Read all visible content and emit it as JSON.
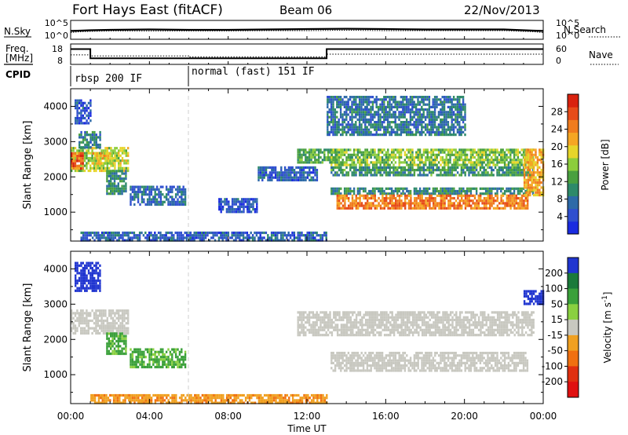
{
  "header": {
    "station": "Fort Hays East (fitACF)",
    "beam": "Beam 06",
    "date": "22/Nov/2013"
  },
  "noise_panel": {
    "left_label": "N.Sky",
    "right_label": "N.Search",
    "left_ticks": [
      "10^5",
      "10^0"
    ],
    "right_ticks": [
      "10^5",
      "10^0"
    ]
  },
  "freq_panel": {
    "left_label_line1": "Freq.",
    "left_label_line2": "[MHz]",
    "right_label": "Nave",
    "left_ticks": [
      "18",
      "8"
    ],
    "right_ticks": [
      "60",
      "0"
    ]
  },
  "cpid_panel": {
    "label": "CPID",
    "segments": [
      {
        "label": "rbsp 200 IF",
        "start_hour": 0,
        "end_hour": 6
      },
      {
        "label": "normal (fast) 151 IF",
        "start_hour": 6,
        "end_hour": 24
      }
    ]
  },
  "chart_data": [
    {
      "type": "line",
      "title": "",
      "series": [
        {
          "name": "N.Sky",
          "x": [
            0,
            0.5,
            1,
            2,
            4,
            6,
            8,
            10,
            12,
            14,
            16,
            18,
            20,
            22,
            23.5,
            24
          ],
          "y": [
            2.2,
            2.3,
            2.4,
            2.5,
            2.6,
            2.5,
            2.5,
            2.6,
            2.7,
            2.8,
            2.7,
            2.6,
            2.6,
            2.6,
            2.3,
            2.2
          ]
        },
        {
          "name": "N.Search",
          "x": [
            0,
            0.5,
            1,
            2,
            4,
            6,
            8,
            10,
            12,
            14,
            16,
            18,
            20,
            22,
            23.5,
            24
          ],
          "y": [
            1.8,
            2.0,
            2.1,
            2.2,
            2.2,
            2.2,
            2.2,
            2.3,
            2.3,
            2.4,
            2.3,
            2.3,
            2.3,
            2.3,
            2.0,
            1.8
          ]
        }
      ],
      "ylabel": "N.Sky",
      "y2label": "N.Search",
      "xlim": [
        0,
        24
      ]
    },
    {
      "type": "line",
      "title": "",
      "series": [
        {
          "name": "Freq.",
          "x": [
            0,
            1,
            1,
            13,
            13,
            24
          ],
          "y": [
            15.5,
            15.5,
            11,
            11,
            15.5,
            15.5
          ]
        },
        {
          "name": "Nave",
          "x": [
            0,
            1,
            1,
            6,
            6,
            13,
            13,
            24
          ],
          "y": [
            28,
            28,
            25,
            25,
            22,
            22,
            30,
            30
          ]
        }
      ],
      "ylabel": "Freq. [MHz]",
      "y2label": "Nave",
      "xlim": [
        0,
        24
      ]
    },
    {
      "type": "heatmap",
      "title": "",
      "xlabel": "",
      "ylabel": "Slant Range [km]",
      "colorbar_label": "Power [dB]",
      "colorbar_ticks": [
        4,
        8,
        12,
        16,
        20,
        24,
        28
      ],
      "colorbar_range": [
        0,
        32
      ],
      "colorbar_colors": [
        "#1a2be0",
        "#2f4fcf",
        "#2d6aa8",
        "#2e8a6a",
        "#4aa040",
        "#8ccd3c",
        "#e6d52a",
        "#f5a623",
        "#f07c1e",
        "#e74c1a",
        "#d9220f"
      ],
      "x_ticks": [
        "00:00",
        "04:00",
        "08:00",
        "12:00",
        "16:00",
        "20:00",
        "00:00"
      ],
      "y_ticks": [
        1000,
        2000,
        3000,
        4000
      ],
      "xlim": [
        0,
        24
      ],
      "ylim": [
        180,
        4500
      ],
      "echo_regions": [
        {
          "t0": 0.0,
          "t1": 2.9,
          "r0": 2200,
          "r1": 2850,
          "v": 17
        },
        {
          "t0": 0.0,
          "t1": 0.6,
          "r0": 2250,
          "r1": 2700,
          "v": 26
        },
        {
          "t0": 1.1,
          "t1": 2.1,
          "r0": 2350,
          "r1": 2700,
          "v": 20
        },
        {
          "t0": 0.4,
          "t1": 1.5,
          "r0": 2850,
          "r1": 3300,
          "v": 9
        },
        {
          "t0": 0.2,
          "t1": 1.0,
          "r0": 3500,
          "r1": 4200,
          "v": 5
        },
        {
          "t0": 1.8,
          "t1": 2.8,
          "r0": 1500,
          "r1": 2200,
          "v": 10
        },
        {
          "t0": 3.0,
          "t1": 5.8,
          "r0": 1200,
          "r1": 1750,
          "v": 7
        },
        {
          "t0": 7.5,
          "t1": 9.5,
          "r0": 1000,
          "r1": 1400,
          "v": 5
        },
        {
          "t0": 9.5,
          "t1": 12.5,
          "r0": 1900,
          "r1": 2300,
          "v": 6
        },
        {
          "t0": 11.5,
          "t1": 13.5,
          "r0": 2400,
          "r1": 2800,
          "v": 13
        },
        {
          "t0": 13.2,
          "t1": 23.5,
          "r0": 2350,
          "r1": 2800,
          "v": 15
        },
        {
          "t0": 13.2,
          "t1": 23.5,
          "r0": 2050,
          "r1": 2300,
          "v": 11
        },
        {
          "t0": 13.2,
          "t1": 23.5,
          "r0": 1500,
          "r1": 1700,
          "v": 10
        },
        {
          "t0": 13.5,
          "t1": 23.2,
          "r0": 1080,
          "r1": 1500,
          "v": 25
        },
        {
          "t0": 13.0,
          "t1": 20.0,
          "r0": 3200,
          "r1": 4300,
          "v": 8
        },
        {
          "t0": 23.0,
          "t1": 24.0,
          "r0": 1500,
          "r1": 2800,
          "v": 22
        },
        {
          "t0": 0.5,
          "t1": 13.0,
          "r0": 200,
          "r1": 450,
          "v": 6
        }
      ]
    },
    {
      "type": "heatmap",
      "title": "",
      "xlabel": "Time UT",
      "ylabel": "Slant Range [km]",
      "colorbar_label": "Velocity [m s^-1]",
      "colorbar_ticks": [
        200,
        100,
        50,
        15,
        -15,
        -50,
        -100,
        -200
      ],
      "colorbar_colors": [
        "#2035d0",
        "#1b7a3a",
        "#3aa03a",
        "#8ad040",
        "#c8c8c0",
        "#f0a020",
        "#f07010",
        "#e03010",
        "#e01010"
      ],
      "x_ticks": [
        "00:00",
        "04:00",
        "08:00",
        "12:00",
        "16:00",
        "20:00",
        "00:00"
      ],
      "y_ticks": [
        1000,
        2000,
        3000,
        4000
      ],
      "xlim": [
        0,
        24
      ],
      "ylim": [
        180,
        4500
      ],
      "echo_regions": [
        {
          "t0": 0.0,
          "t1": 2.9,
          "r0": 2200,
          "r1": 2850,
          "v": 0
        },
        {
          "t0": 0.2,
          "t1": 1.5,
          "r0": 3400,
          "r1": 4200,
          "v": 180
        },
        {
          "t0": 1.8,
          "t1": 2.8,
          "r0": 1600,
          "r1": 2200,
          "v": 40
        },
        {
          "t0": 3.0,
          "t1": 5.8,
          "r0": 1200,
          "r1": 1750,
          "v": 40
        },
        {
          "t0": 11.5,
          "t1": 23.5,
          "r0": 2100,
          "r1": 2800,
          "v": 0
        },
        {
          "t0": 13.2,
          "t1": 23.2,
          "r0": 1150,
          "r1": 1650,
          "v": 0
        },
        {
          "t0": 23.0,
          "t1": 24.0,
          "r0": 3000,
          "r1": 3400,
          "v": 180
        },
        {
          "t0": 1.0,
          "t1": 13.0,
          "r0": 200,
          "r1": 450,
          "v": -40
        }
      ]
    }
  ]
}
